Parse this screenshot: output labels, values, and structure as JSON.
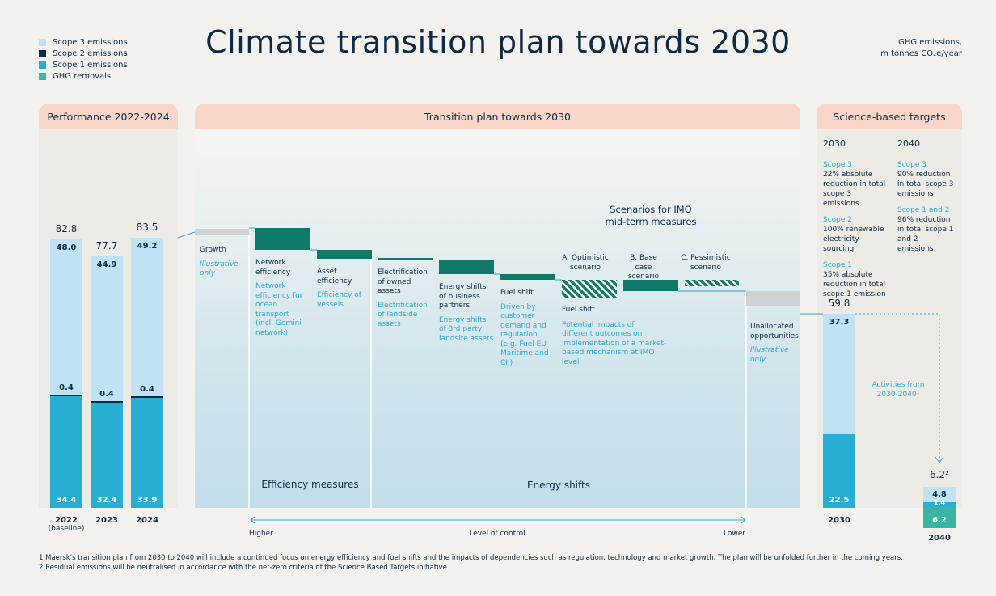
{
  "title": "Climate transition plan towards 2030",
  "units": {
    "line1": "GHG emissions,",
    "line2": "m tonnes CO₂e/year"
  },
  "legend": [
    {
      "label": "Scope 3 emissions",
      "color": "#bfe3f4"
    },
    {
      "label": "Scope 2 emissions",
      "color": "#0f2a44"
    },
    {
      "label": "Scope 1 emissions",
      "color": "#29aed3"
    },
    {
      "label": "GHG removals",
      "color": "#3bb5a3"
    }
  ],
  "panels": {
    "performance": "Performance 2022-2024",
    "transition": "Transition plan towards 2030",
    "targets": "Science-based targets"
  },
  "performance": {
    "years": [
      {
        "label": "2022",
        "sublabel": "(baseline)",
        "total": "82.8",
        "scope3": "48.0",
        "scope2": "0.4",
        "scope1": "34.4"
      },
      {
        "label": "2023",
        "sublabel": "",
        "total": "77.7",
        "scope3": "44.9",
        "scope2": "0.4",
        "scope1": "32.4"
      },
      {
        "label": "2024",
        "sublabel": "",
        "total": "83.5",
        "scope3": "49.2",
        "scope2": "0.4",
        "scope1": "33.9"
      }
    ]
  },
  "chart_data": {
    "type": "bar",
    "categories": [
      "2022 (baseline)",
      "2023",
      "2024",
      "2030",
      "2040"
    ],
    "series": [
      {
        "name": "Scope 3 emissions",
        "values": [
          48.0,
          44.9,
          49.2,
          37.3,
          4.8
        ]
      },
      {
        "name": "Scope 2 emissions",
        "values": [
          0.4,
          0.4,
          0.4,
          null,
          null
        ]
      },
      {
        "name": "Scope 1 emissions",
        "values": [
          34.4,
          32.4,
          33.9,
          22.5,
          1.4
        ]
      },
      {
        "name": "GHG removals",
        "values": [
          null,
          null,
          null,
          null,
          6.2
        ]
      }
    ],
    "totals": [
      82.8,
      77.7,
      83.5,
      59.8,
      6.2
    ],
    "title": "Climate transition plan towards 2030"
  },
  "transition": {
    "steps": [
      {
        "title": "Growth",
        "desc": "Illustrative only"
      },
      {
        "title": "Network efficiency",
        "desc": "Network efficiency for ocean transport (incl. Gemini network)"
      },
      {
        "title": "Asset efficiency",
        "desc": "Efficiency of vessels"
      },
      {
        "title": "Electrification of owned assets",
        "desc": "Electrification of landside assets"
      },
      {
        "title": "Energy shifts of business partners",
        "desc": "Energy shifts of 3rd party landsite assets"
      },
      {
        "title": "Fuel shift",
        "desc": "Driven by customer demand and regulation (e.g. Fuel EU Maritime and CII)"
      },
      {
        "title": "Unallocated opportunities",
        "desc": "Illustrative only"
      }
    ],
    "scenarios_title_1": "Scenarios for IMO",
    "scenarios_title_2": "mid-term measures",
    "scenarios": [
      "A. Optimistic scenario",
      "B. Base case scenario",
      "C. Pessimistic scenario"
    ],
    "imo_title": "Fuel shift",
    "imo_desc": "Potential impacts of different outcomes on implementation of a market-based mechanism at IMO level",
    "group_efficiency": "Efficiency measures",
    "group_energy": "Energy shifts",
    "axis_higher": "Higher",
    "axis_middle": "Level of control",
    "axis_lower": "Lower"
  },
  "targets": {
    "col2030": {
      "year": "2030",
      "items": [
        {
          "head": "Scope 3",
          "text": "22% absolute reduction in total scope 3 emissions"
        },
        {
          "head": "Scope 2",
          "text": "100% renewable electricity sourcing"
        },
        {
          "head": "Scope 1",
          "text": "35% absolute reduction in total scope 1 emission"
        }
      ]
    },
    "col2040": {
      "year": "2040",
      "items": [
        {
          "head": "Scope 3",
          "text": "90% reduction in total scope 3 emissions"
        },
        {
          "head": "Scope 1 and 2",
          "text": "96% reduction in total scope 1 and 2 emissions"
        }
      ]
    },
    "bar2030": {
      "label": "2030",
      "total": "59.8",
      "scope3": "37.3",
      "scope1": "22.5"
    },
    "bar2040": {
      "label": "2040",
      "total": "6.2²",
      "scope3": "4.8",
      "scope1": "1.4",
      "removals": "6.2"
    },
    "activities": "Activities from 2030-2040¹"
  },
  "footnotes": [
    "1   Maersk's transition plan from 2030 to 2040 will include a continued focus on energy efficiency and fuel shifts and the impacts of dependencies such as regulation, technology and market growth. The plan will be unfolded further in the coming years.",
    "2   Residual emissions will be neutralised in accordance with the net-zero criteria of the Science Based Targets initiative."
  ]
}
